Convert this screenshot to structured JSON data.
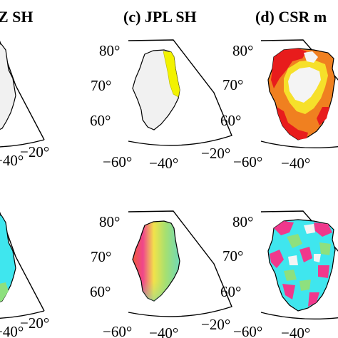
{
  "panels": [
    {
      "title": "Z SH",
      "lat_labels": [],
      "lon_labels": [
        "−40°",
        "−20°"
      ]
    },
    {
      "title": "(c) JPL SH",
      "lat_labels": [
        "80°",
        "70°",
        "60°"
      ],
      "lon_labels": [
        "−60°",
        "−40°",
        "−20°"
      ]
    },
    {
      "title": "(d) CSR m",
      "lat_labels": [
        "80°",
        "70°",
        "60°"
      ],
      "lon_labels": [
        "−60°",
        "−40°"
      ]
    }
  ],
  "bottom_row": {
    "lat_labels_mid": [
      "80°",
      "70°",
      "60°"
    ],
    "lat_labels_right": [
      "80°",
      "70°",
      "60°"
    ],
    "lon_labels_left": [
      "−40°",
      "−20°"
    ],
    "lon_labels_mid": [
      "−60°",
      "−40°",
      "−20°"
    ],
    "lon_labels_right": [
      "−60°",
      "−40°"
    ]
  },
  "colors": {
    "ice_background": "#f1f1f1",
    "yellow": "#f2f200",
    "orange": "#f0801c",
    "red": "#e81c1c",
    "cyan": "#3fe6ee",
    "green": "#8ee07e",
    "magenta": "#f0388c"
  }
}
